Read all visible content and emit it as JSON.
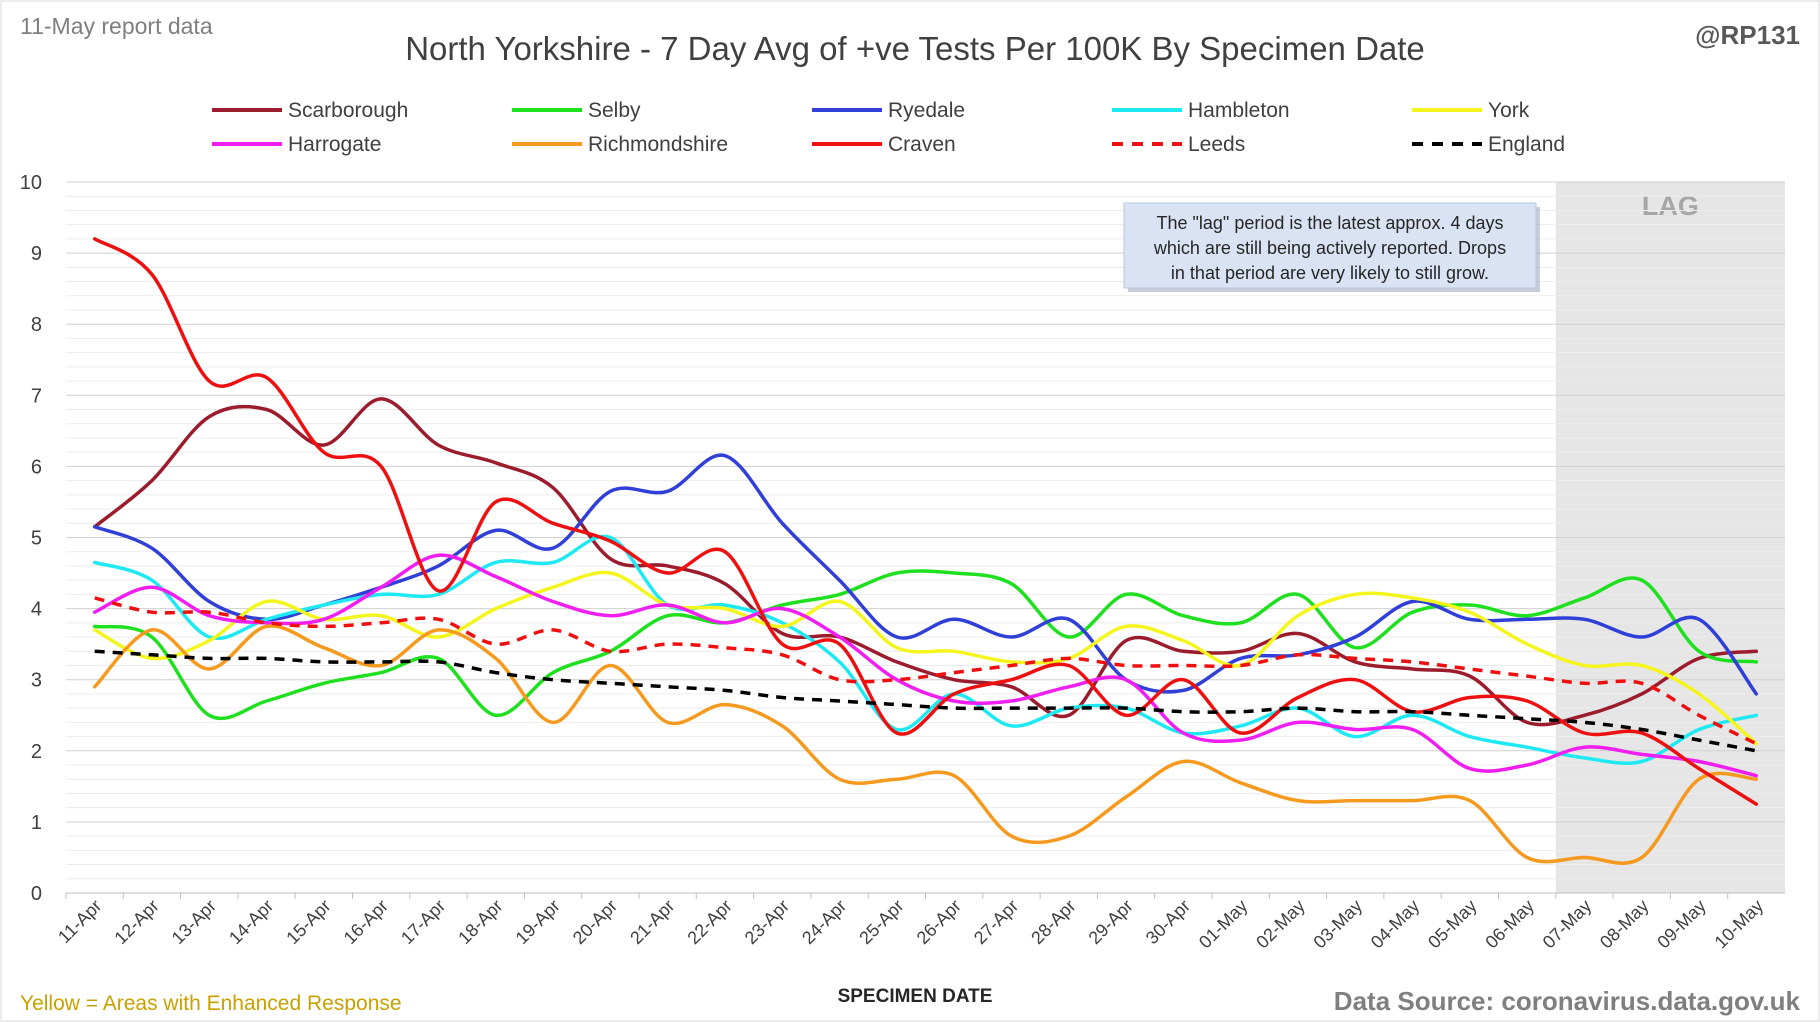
{
  "header": {
    "report_label": "11-May report data",
    "handle": "@RP131"
  },
  "footer": {
    "enhanced_note": "Yellow = Areas with Enhanced Response",
    "source": "Data Source: coronavirus.data.gov.uk"
  },
  "annotation": {
    "lines": [
      "The \"lag\" period is the latest approx. 4 days",
      "which are still being actively reported. Drops",
      "in that period are very likely to still grow."
    ],
    "lag_label": "LAG"
  },
  "colors": {
    "lag_shade": "#e6e6e6",
    "grid": "#d9d9d9",
    "annotation_bg": "#dae3f3",
    "enhanced_note": "#c9a100"
  },
  "chart_data": {
    "type": "line",
    "title": "North Yorkshire - 7 Day Avg of +ve Tests Per 100K By Specimen Date",
    "xlabel": "SPECIMEN DATE",
    "ylabel": "",
    "ylim": [
      0,
      10
    ],
    "yticks": [
      "0",
      "1",
      "2",
      "3",
      "4",
      "5",
      "6",
      "7",
      "8",
      "9",
      "10"
    ],
    "grid": true,
    "legend_position": "top",
    "lag_start": "07-May",
    "x": [
      "11-Apr",
      "12-Apr",
      "13-Apr",
      "14-Apr",
      "15-Apr",
      "16-Apr",
      "17-Apr",
      "18-Apr",
      "19-Apr",
      "20-Apr",
      "21-Apr",
      "22-Apr",
      "23-Apr",
      "24-Apr",
      "25-Apr",
      "26-Apr",
      "27-Apr",
      "28-Apr",
      "29-Apr",
      "30-Apr",
      "01-May",
      "02-May",
      "03-May",
      "04-May",
      "05-May",
      "06-May",
      "07-May",
      "08-May",
      "09-May",
      "10-May"
    ],
    "series": [
      {
        "name": "Scarborough",
        "color": "#9b1c2c",
        "dash": false,
        "values": [
          5.15,
          5.8,
          6.7,
          6.8,
          6.3,
          6.95,
          6.3,
          6.05,
          5.7,
          4.7,
          4.6,
          4.35,
          3.65,
          3.6,
          3.25,
          3.0,
          2.9,
          2.5,
          3.55,
          3.4,
          3.4,
          3.65,
          3.25,
          3.15,
          3.05,
          2.4,
          2.5,
          2.8,
          3.3,
          3.4
        ]
      },
      {
        "name": "Selby",
        "color": "#1fe01f",
        "dash": false,
        "values": [
          3.75,
          3.6,
          2.5,
          2.7,
          2.95,
          3.1,
          3.3,
          2.5,
          3.1,
          3.4,
          3.9,
          3.8,
          4.05,
          4.2,
          4.5,
          4.5,
          4.35,
          3.6,
          4.2,
          3.9,
          3.8,
          4.2,
          3.45,
          3.95,
          4.05,
          3.9,
          4.15,
          4.4,
          3.4,
          3.25
        ]
      },
      {
        "name": "Ryedale",
        "color": "#2f3fd8",
        "dash": false,
        "values": [
          5.15,
          4.85,
          4.1,
          3.85,
          4.05,
          4.3,
          4.6,
          5.1,
          4.85,
          5.65,
          5.65,
          6.15,
          5.2,
          4.4,
          3.6,
          3.85,
          3.6,
          3.85,
          3.0,
          2.85,
          3.3,
          3.35,
          3.6,
          4.1,
          3.85,
          3.85,
          3.85,
          3.6,
          3.85,
          2.8
        ]
      },
      {
        "name": "Hambleton",
        "color": "#1ee9f2",
        "dash": false,
        "values": [
          4.65,
          4.4,
          3.6,
          3.85,
          4.05,
          4.2,
          4.2,
          4.65,
          4.65,
          5.0,
          4.05,
          4.05,
          3.8,
          3.25,
          2.3,
          2.8,
          2.35,
          2.6,
          2.6,
          2.25,
          2.35,
          2.6,
          2.2,
          2.5,
          2.2,
          2.05,
          1.9,
          1.85,
          2.3,
          2.5
        ]
      },
      {
        "name": "York",
        "color": "#f5f51e",
        "dash": false,
        "values": [
          3.7,
          3.3,
          3.55,
          4.1,
          3.85,
          3.9,
          3.6,
          4.0,
          4.3,
          4.5,
          4.05,
          4.0,
          3.75,
          4.1,
          3.45,
          3.4,
          3.25,
          3.3,
          3.75,
          3.55,
          3.2,
          3.9,
          4.2,
          4.15,
          3.95,
          3.5,
          3.2,
          3.2,
          2.8,
          2.1
        ]
      },
      {
        "name": "Harrogate",
        "color": "#f01ef0",
        "dash": false,
        "values": [
          3.95,
          4.3,
          3.9,
          3.8,
          3.85,
          4.3,
          4.75,
          4.45,
          4.1,
          3.9,
          4.05,
          3.8,
          4.0,
          3.6,
          3.0,
          2.7,
          2.7,
          2.9,
          3.0,
          2.25,
          2.15,
          2.4,
          2.3,
          2.3,
          1.75,
          1.8,
          2.05,
          1.95,
          1.85,
          1.65
        ]
      },
      {
        "name": "Richmondshire",
        "color": "#f59a1e",
        "dash": false,
        "values": [
          2.9,
          3.7,
          3.15,
          3.75,
          3.45,
          3.2,
          3.7,
          3.3,
          2.4,
          3.2,
          2.4,
          2.65,
          2.35,
          1.6,
          1.6,
          1.65,
          0.8,
          0.8,
          1.35,
          1.85,
          1.55,
          1.3,
          1.3,
          1.3,
          1.3,
          0.5,
          0.5,
          0.5,
          1.6,
          1.6
        ]
      },
      {
        "name": "Craven",
        "color": "#ee1010",
        "dash": false,
        "values": [
          9.2,
          8.7,
          7.2,
          7.25,
          6.2,
          6.0,
          4.25,
          5.5,
          5.2,
          4.95,
          4.5,
          4.8,
          3.5,
          3.5,
          2.25,
          2.8,
          3.0,
          3.2,
          2.5,
          3.0,
          2.25,
          2.75,
          3.0,
          2.55,
          2.75,
          2.7,
          2.25,
          2.25,
          1.75,
          1.25
        ]
      },
      {
        "name": "Leeds",
        "color": "#ee1010",
        "dash": true,
        "values": [
          4.15,
          3.95,
          3.95,
          3.8,
          3.75,
          3.8,
          3.85,
          3.5,
          3.7,
          3.4,
          3.5,
          3.45,
          3.35,
          3.0,
          3.0,
          3.1,
          3.2,
          3.3,
          3.2,
          3.2,
          3.2,
          3.35,
          3.3,
          3.25,
          3.15,
          3.05,
          2.95,
          2.95,
          2.5,
          2.1
        ]
      },
      {
        "name": "England",
        "color": "#000000",
        "dash": true,
        "values": [
          3.4,
          3.35,
          3.3,
          3.3,
          3.25,
          3.25,
          3.25,
          3.1,
          3.0,
          2.95,
          2.9,
          2.85,
          2.75,
          2.7,
          2.65,
          2.6,
          2.6,
          2.6,
          2.6,
          2.55,
          2.55,
          2.6,
          2.55,
          2.55,
          2.5,
          2.45,
          2.4,
          2.3,
          2.15,
          2.0
        ]
      }
    ]
  }
}
